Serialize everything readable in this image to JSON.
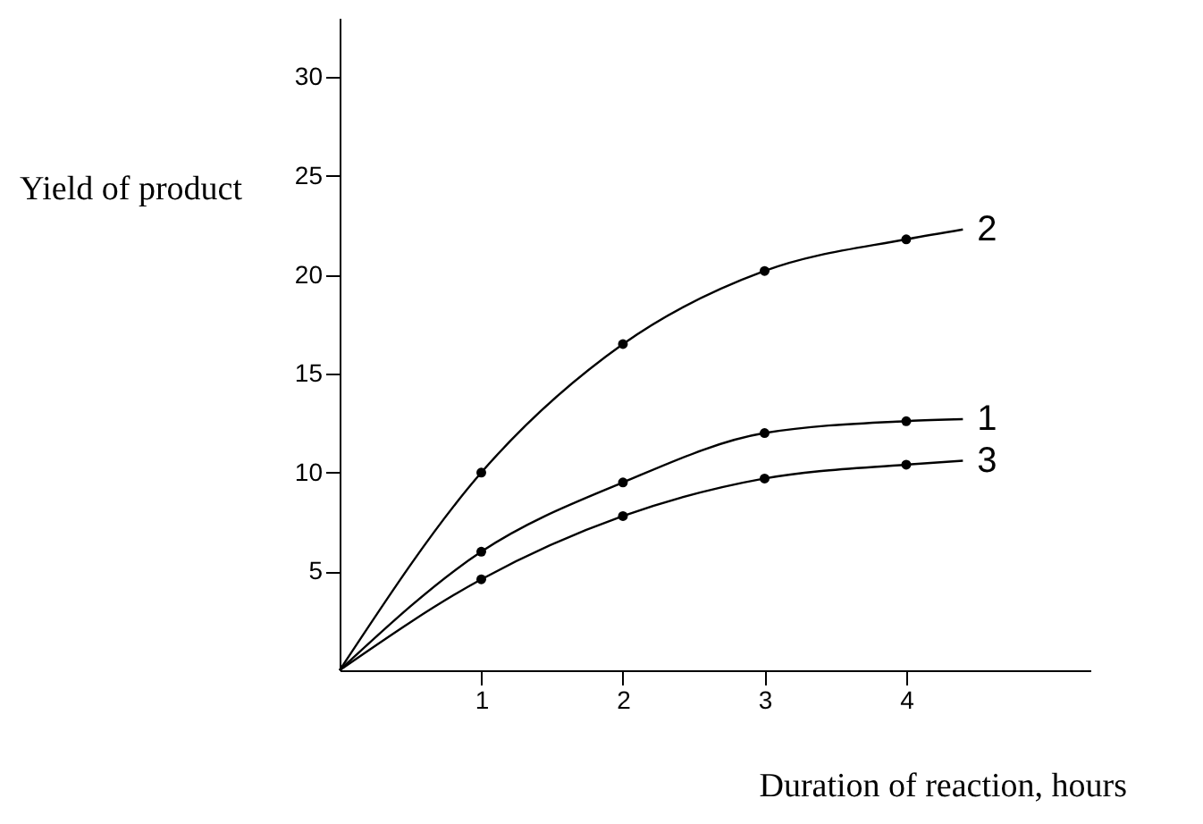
{
  "chart_data": {
    "type": "line",
    "xlabel": "Duration of reaction, hours",
    "ylabel": "Yield of product",
    "xlim": [
      0,
      5.3
    ],
    "ylim": [
      0,
      33
    ],
    "xticks": [
      1,
      2,
      3,
      4
    ],
    "yticks": [
      5,
      10,
      15,
      20,
      25,
      30
    ],
    "grid": false,
    "marker": "none",
    "line_style": "solid",
    "series": [
      {
        "name": "1",
        "color": "#000000",
        "x": [
          0,
          1,
          2,
          3,
          4,
          4.4
        ],
        "values": [
          0,
          6,
          9.5,
          12,
          12.6,
          12.7
        ]
      },
      {
        "name": "2",
        "color": "#000000",
        "x": [
          0,
          1,
          2,
          3,
          4,
          4.4
        ],
        "values": [
          0,
          10,
          16.5,
          20.2,
          21.8,
          22.3
        ]
      },
      {
        "name": "3",
        "color": "#000000",
        "x": [
          0,
          1,
          2,
          3,
          4,
          4.4
        ],
        "values": [
          0,
          4.6,
          7.8,
          9.7,
          10.4,
          10.6
        ]
      },
      {
        "color": "#000000",
        "type": "scatter",
        "marker": "circle",
        "x": [
          1,
          2,
          3,
          4
        ],
        "values": [
          6,
          9.5,
          12,
          12.6
        ]
      },
      {
        "color": "#000000",
        "type": "scatter",
        "marker": "circle",
        "x": [
          1,
          2,
          3,
          4
        ],
        "values": [
          10,
          16.5,
          20.2,
          21.8
        ]
      },
      {
        "color": "#000000",
        "type": "scatter",
        "marker": "circle",
        "x": [
          1,
          2,
          3,
          4
        ],
        "values": [
          4.6,
          7.8,
          9.7,
          10.4
        ]
      }
    ]
  }
}
